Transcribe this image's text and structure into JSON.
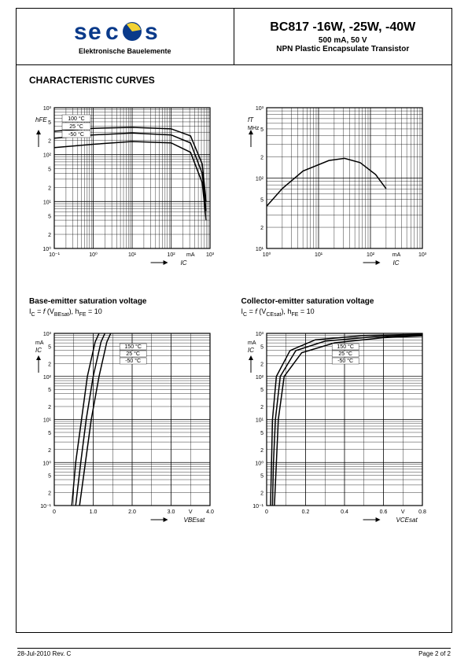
{
  "header": {
    "logo_sub": "Elektronische Bauelemente",
    "part_title": "BC817 -16W, -25W, -40W",
    "part_sub1": "500 mA, 50 V",
    "part_sub2": "NPN Plastic Encapsulate Transistor",
    "logo_colors": {
      "blue": "#0a3a8a",
      "yellow": "#f2d233"
    }
  },
  "section_title": "CHARACTERISTIC CURVES",
  "chart1": {
    "type": "log-log",
    "ylabel": "hFE",
    "xlabel": "IC",
    "xunit": "mA",
    "xlim": [
      -1,
      3
    ],
    "ylim": [
      0,
      3
    ],
    "x_ticks": [
      "10⁻¹",
      "10⁰",
      "10¹",
      "10²",
      "10³"
    ],
    "y_ticks": [
      "10⁰",
      "10¹",
      "10²",
      "10³"
    ],
    "y_minor": [
      2,
      5
    ],
    "curves": [
      {
        "label": "100 °C",
        "points": [
          [
            -1,
            2.5
          ],
          [
            0,
            2.56
          ],
          [
            1,
            2.58
          ],
          [
            2,
            2.55
          ],
          [
            2.5,
            2.4
          ],
          [
            2.8,
            1.8
          ],
          [
            2.9,
            1.0
          ]
        ]
      },
      {
        "label": "25 °C",
        "points": [
          [
            -1,
            2.35
          ],
          [
            0,
            2.42
          ],
          [
            1,
            2.46
          ],
          [
            2,
            2.42
          ],
          [
            2.5,
            2.25
          ],
          [
            2.8,
            1.6
          ],
          [
            2.9,
            0.8
          ]
        ]
      },
      {
        "label": "-50 °C",
        "points": [
          [
            -1,
            2.15
          ],
          [
            0,
            2.22
          ],
          [
            1,
            2.28
          ],
          [
            2,
            2.25
          ],
          [
            2.5,
            2.05
          ],
          [
            2.8,
            1.4
          ],
          [
            2.9,
            0.6
          ]
        ]
      }
    ],
    "grid_color": "#000",
    "background": "#ffffff"
  },
  "chart2": {
    "type": "log-log",
    "ylabel": "fT",
    "yunit": "MHz",
    "xlabel": "IC",
    "xunit": "mA",
    "xlim": [
      0,
      3
    ],
    "ylim": [
      1,
      3
    ],
    "x_ticks": [
      "10⁰",
      "10¹",
      "10²",
      "10³"
    ],
    "y_ticks": [
      "10¹",
      "10²",
      "10³"
    ],
    "y_minor": [
      2,
      5
    ],
    "curve": {
      "points": [
        [
          0,
          1.6
        ],
        [
          0.3,
          1.85
        ],
        [
          0.7,
          2.1
        ],
        [
          1.2,
          2.25
        ],
        [
          1.5,
          2.28
        ],
        [
          1.8,
          2.22
        ],
        [
          2.1,
          2.05
        ],
        [
          2.3,
          1.85
        ]
      ]
    },
    "grid_color": "#000",
    "background": "#ffffff"
  },
  "chart3": {
    "type": "linear-log",
    "caption": "Base-emitter saturation voltage",
    "subcaption_html": "I<sub>C</sub> = <i>f</i> (V<sub>BEsat</sub>), h<sub>FE</sub> = 10",
    "ylabel": "IC",
    "yunit": "mA",
    "xlabel": "VBEsat",
    "xunit": "V",
    "xlim": [
      0,
      4.0
    ],
    "ylim": [
      -1,
      3
    ],
    "x_ticks": [
      "0",
      "1.0",
      "2.0",
      "3.0",
      "4.0"
    ],
    "y_ticks": [
      "10⁻¹",
      "10⁰",
      "10¹",
      "10²",
      "10³"
    ],
    "y_minor": [
      2,
      5
    ],
    "curves": [
      {
        "label": "150 °C",
        "points": [
          [
            0.45,
            -1
          ],
          [
            0.55,
            0
          ],
          [
            0.7,
            1
          ],
          [
            0.85,
            2
          ],
          [
            1.05,
            2.8
          ],
          [
            1.15,
            3
          ]
        ]
      },
      {
        "label": "25 °C",
        "points": [
          [
            0.55,
            -1
          ],
          [
            0.68,
            0
          ],
          [
            0.82,
            1
          ],
          [
            1.0,
            2
          ],
          [
            1.2,
            2.8
          ],
          [
            1.3,
            3
          ]
        ]
      },
      {
        "label": "-50 °C",
        "points": [
          [
            0.65,
            -1
          ],
          [
            0.8,
            0
          ],
          [
            0.95,
            1
          ],
          [
            1.15,
            2
          ],
          [
            1.35,
            2.8
          ],
          [
            1.45,
            3
          ]
        ]
      }
    ],
    "grid_color": "#000",
    "background": "#ffffff"
  },
  "chart4": {
    "type": "linear-log",
    "caption": "Collector-emitter saturation voltage",
    "subcaption_html": "I<sub>C</sub> = <i>f</i> (V<sub>CEsat</sub>), h<sub>FE</sub> = 10",
    "ylabel": "IC",
    "yunit": "mA",
    "xlabel": "VCEsat",
    "xunit": "V",
    "xlim": [
      0,
      0.8
    ],
    "ylim": [
      -1,
      3
    ],
    "x_ticks": [
      "0",
      "0.2",
      "0.4",
      "0.6",
      "0.8"
    ],
    "y_ticks": [
      "10⁻¹",
      "10⁰",
      "10¹",
      "10²",
      "10³"
    ],
    "y_minor": [
      2,
      5
    ],
    "curves": [
      {
        "label": "150 °C",
        "points": [
          [
            0.02,
            -1
          ],
          [
            0.025,
            0
          ],
          [
            0.03,
            1
          ],
          [
            0.05,
            2
          ],
          [
            0.12,
            2.6
          ],
          [
            0.25,
            2.85
          ],
          [
            0.5,
            2.95
          ],
          [
            0.8,
            2.98
          ]
        ]
      },
      {
        "label": "25 °C",
        "points": [
          [
            0.03,
            -1
          ],
          [
            0.035,
            0
          ],
          [
            0.045,
            1
          ],
          [
            0.07,
            2
          ],
          [
            0.15,
            2.6
          ],
          [
            0.3,
            2.82
          ],
          [
            0.55,
            2.92
          ],
          [
            0.8,
            2.96
          ]
        ]
      },
      {
        "label": "-50 °C",
        "points": [
          [
            0.04,
            -1
          ],
          [
            0.05,
            0
          ],
          [
            0.06,
            1
          ],
          [
            0.09,
            2
          ],
          [
            0.18,
            2.55
          ],
          [
            0.35,
            2.78
          ],
          [
            0.6,
            2.9
          ],
          [
            0.8,
            2.94
          ]
        ]
      }
    ],
    "grid_color": "#000",
    "background": "#ffffff"
  },
  "footer": {
    "left": "28-Jul-2010 Rev. C",
    "right": "Page 2 of 2"
  },
  "styling": {
    "axis_stroke": "#000",
    "axis_stroke_width": 1.2,
    "grid_stroke": "#000",
    "grid_stroke_width": 0.5,
    "curve_stroke": "#000",
    "curve_stroke_width": 1.5,
    "tick_fontsize": 7,
    "label_fontsize": 8
  }
}
